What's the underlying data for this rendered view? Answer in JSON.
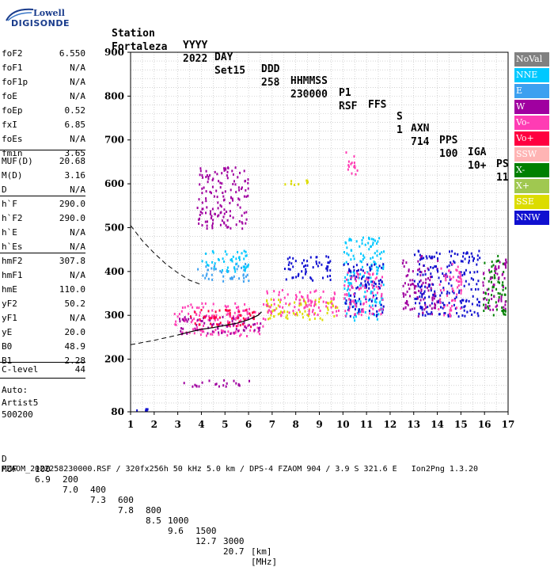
{
  "logo": {
    "line1": "Lowell",
    "line2": "DIGISONDE"
  },
  "header": {
    "labels": [
      "Station",
      "YYYY",
      "DAY",
      "DDD",
      "HHMMSS",
      "P1",
      "FFS",
      "S",
      "AXN",
      "PPS",
      "IGA",
      "PS"
    ],
    "values": [
      "Fortaleza",
      "2022",
      "Set15",
      "258",
      "230000",
      "RSF",
      "",
      "1",
      "714",
      "100",
      "10+",
      "11"
    ]
  },
  "params_group1": [
    {
      "name": "foF2",
      "value": "6.550"
    },
    {
      "name": "foF1",
      "value": "N/A"
    },
    {
      "name": "foF1p",
      "value": "N/A"
    },
    {
      "name": "foE",
      "value": "N/A"
    },
    {
      "name": "foEp",
      "value": "0.52"
    },
    {
      "name": "fxI",
      "value": "6.85"
    },
    {
      "name": "foEs",
      "value": "N/A"
    },
    {
      "name": "fmin",
      "value": "3.65"
    }
  ],
  "params_group2": [
    {
      "name": "MUF(D)",
      "value": "20.68"
    },
    {
      "name": "M(D)",
      "value": "3.16"
    },
    {
      "name": "D",
      "value": "N/A"
    }
  ],
  "params_group3": [
    {
      "name": "h`F",
      "value": "290.0"
    },
    {
      "name": "h`F2",
      "value": "290.0"
    },
    {
      "name": "h`E",
      "value": "N/A"
    },
    {
      "name": "h`Es",
      "value": "N/A"
    }
  ],
  "params_group4": [
    {
      "name": "hmF2",
      "value": "307.8"
    },
    {
      "name": "hmF1",
      "value": "N/A"
    },
    {
      "name": "hmE",
      "value": "110.0"
    },
    {
      "name": "yF2",
      "value": "50.2"
    },
    {
      "name": "yF1",
      "value": "N/A"
    },
    {
      "name": "yE",
      "value": "20.0"
    },
    {
      "name": "B0",
      "value": "48.9"
    },
    {
      "name": "B1",
      "value": "2.28"
    }
  ],
  "clevel": {
    "name": "C-level",
    "value": "44"
  },
  "auto": {
    "line1": "Auto:",
    "line2": "Artist5",
    "line3": "500200"
  },
  "legend": [
    {
      "label": "NoVal",
      "color": "#808080"
    },
    {
      "label": "NNE",
      "color": "#00c8ff"
    },
    {
      "label": "E",
      "color": "#3ca0f0"
    },
    {
      "label": "W",
      "color": "#a000a0"
    },
    {
      "label": "Vo-",
      "color": "#ff3cb4"
    },
    {
      "label": "Vo+",
      "color": "#ff0040"
    },
    {
      "label": "SSW",
      "color": "#ffb4b4"
    },
    {
      "label": "X-",
      "color": "#008000"
    },
    {
      "label": "X+",
      "color": "#a0c850"
    },
    {
      "label": "SSE",
      "color": "#dcdc00"
    },
    {
      "label": "NNW",
      "color": "#1010d0"
    }
  ],
  "chart_data": {
    "type": "scatter",
    "title": "",
    "xlabel": "",
    "ylabel": "",
    "xlim": [
      1,
      17
    ],
    "ylim": [
      80,
      900
    ],
    "x_ticks": [
      1,
      2,
      3,
      4,
      5,
      6,
      7,
      8,
      9,
      10,
      11,
      12,
      13,
      14,
      15,
      16,
      17
    ],
    "y_ticks": [
      80,
      200,
      300,
      400,
      500,
      600,
      700,
      800,
      900
    ],
    "grid": true,
    "legend_position": "right",
    "profile_curve": [
      [
        3.0,
        255
      ],
      [
        3.5,
        262
      ],
      [
        4.0,
        268
      ],
      [
        4.5,
        272
      ],
      [
        5.0,
        277
      ],
      [
        5.5,
        282
      ],
      [
        6.0,
        290
      ],
      [
        6.4,
        300
      ],
      [
        6.55,
        308
      ]
    ],
    "trace_lower": [
      [
        1.0,
        233
      ],
      [
        2.0,
        243
      ],
      [
        3.0,
        255
      ]
    ],
    "trace_upper": [
      [
        1.0,
        505
      ],
      [
        1.5,
        470
      ],
      [
        2.0,
        442
      ],
      [
        2.5,
        417
      ],
      [
        3.0,
        397
      ],
      [
        3.5,
        380
      ],
      [
        4.0,
        370
      ]
    ],
    "echo_clusters": [
      {
        "x": [
          1.1,
          1.9
        ],
        "y": [
          85,
          90
        ],
        "color": "#1010d0"
      },
      {
        "x": [
          2.8,
          6.7
        ],
        "y": [
          255,
          330
        ],
        "color": "#ff3cb4"
      },
      {
        "x": [
          3.0,
          6.5
        ],
        "y": [
          260,
          300
        ],
        "color": "#a000a0"
      },
      {
        "x": [
          3.5,
          6.3
        ],
        "y": [
          275,
          315
        ],
        "color": "#ff0040"
      },
      {
        "x": [
          3.8,
          6.0
        ],
        "y": [
          380,
          420
        ],
        "color": "#3ca0f0"
      },
      {
        "x": [
          4.0,
          6.0
        ],
        "y": [
          400,
          450
        ],
        "color": "#00c8ff"
      },
      {
        "x": [
          6.7,
          9.8
        ],
        "y": [
          290,
          340
        ],
        "color": "#dcdc00"
      },
      {
        "x": [
          6.7,
          9.8
        ],
        "y": [
          300,
          360
        ],
        "color": "#ff3cb4"
      },
      {
        "x": [
          7.5,
          9.5
        ],
        "y": [
          380,
          440
        ],
        "color": "#1010d0"
      },
      {
        "x": [
          10.0,
          11.7
        ],
        "y": [
          290,
          480
        ],
        "color": "#00c8ff"
      },
      {
        "x": [
          10.0,
          11.7
        ],
        "y": [
          300,
          420
        ],
        "color": "#1010d0"
      },
      {
        "x": [
          10.0,
          11.7
        ],
        "y": [
          300,
          400
        ],
        "color": "#ff3cb4"
      },
      {
        "x": [
          12.5,
          14.0
        ],
        "y": [
          300,
          440
        ],
        "color": "#a000a0"
      },
      {
        "x": [
          13.0,
          15.8
        ],
        "y": [
          300,
          450
        ],
        "color": "#1010d0"
      },
      {
        "x": [
          14.0,
          15.0
        ],
        "y": [
          300,
          420
        ],
        "color": "#ff3cb4"
      },
      {
        "x": [
          15.9,
          16.9
        ],
        "y": [
          300,
          440
        ],
        "color": "#008000"
      },
      {
        "x": [
          15.9,
          16.9
        ],
        "y": [
          310,
          430
        ],
        "color": "#a000a0"
      },
      {
        "x": [
          3.0,
          6.0
        ],
        "y": [
          140,
          155
        ],
        "color": "#a000a0"
      },
      {
        "x": [
          10.1,
          10.7
        ],
        "y": [
          620,
          680
        ],
        "color": "#ff3cb4"
      },
      {
        "x": [
          7.5,
          8.5
        ],
        "y": [
          590,
          610
        ],
        "color": "#dcdc00"
      },
      {
        "x": [
          3.8,
          6.0
        ],
        "y": [
          500,
          640
        ],
        "color": "#a000a0"
      }
    ]
  },
  "bottom": {
    "d_label": "D",
    "d_values": [
      "100",
      "200",
      "400",
      "600",
      "800",
      "1000",
      "1500",
      "3000",
      "[km]"
    ],
    "muf_label": "MUF",
    "muf_values": [
      "6.9",
      "7.0",
      "7.3",
      "7.8",
      "8.5",
      "9.6",
      "12.7",
      "20.7",
      "[MHz]"
    ],
    "footer": "FZAOM_2022258230000.RSF / 320fx256h 50 kHz 5.0 km / DPS-4 FZAOM 904 / 3.9 S 321.6 E   Ion2Png 1.3.20"
  }
}
